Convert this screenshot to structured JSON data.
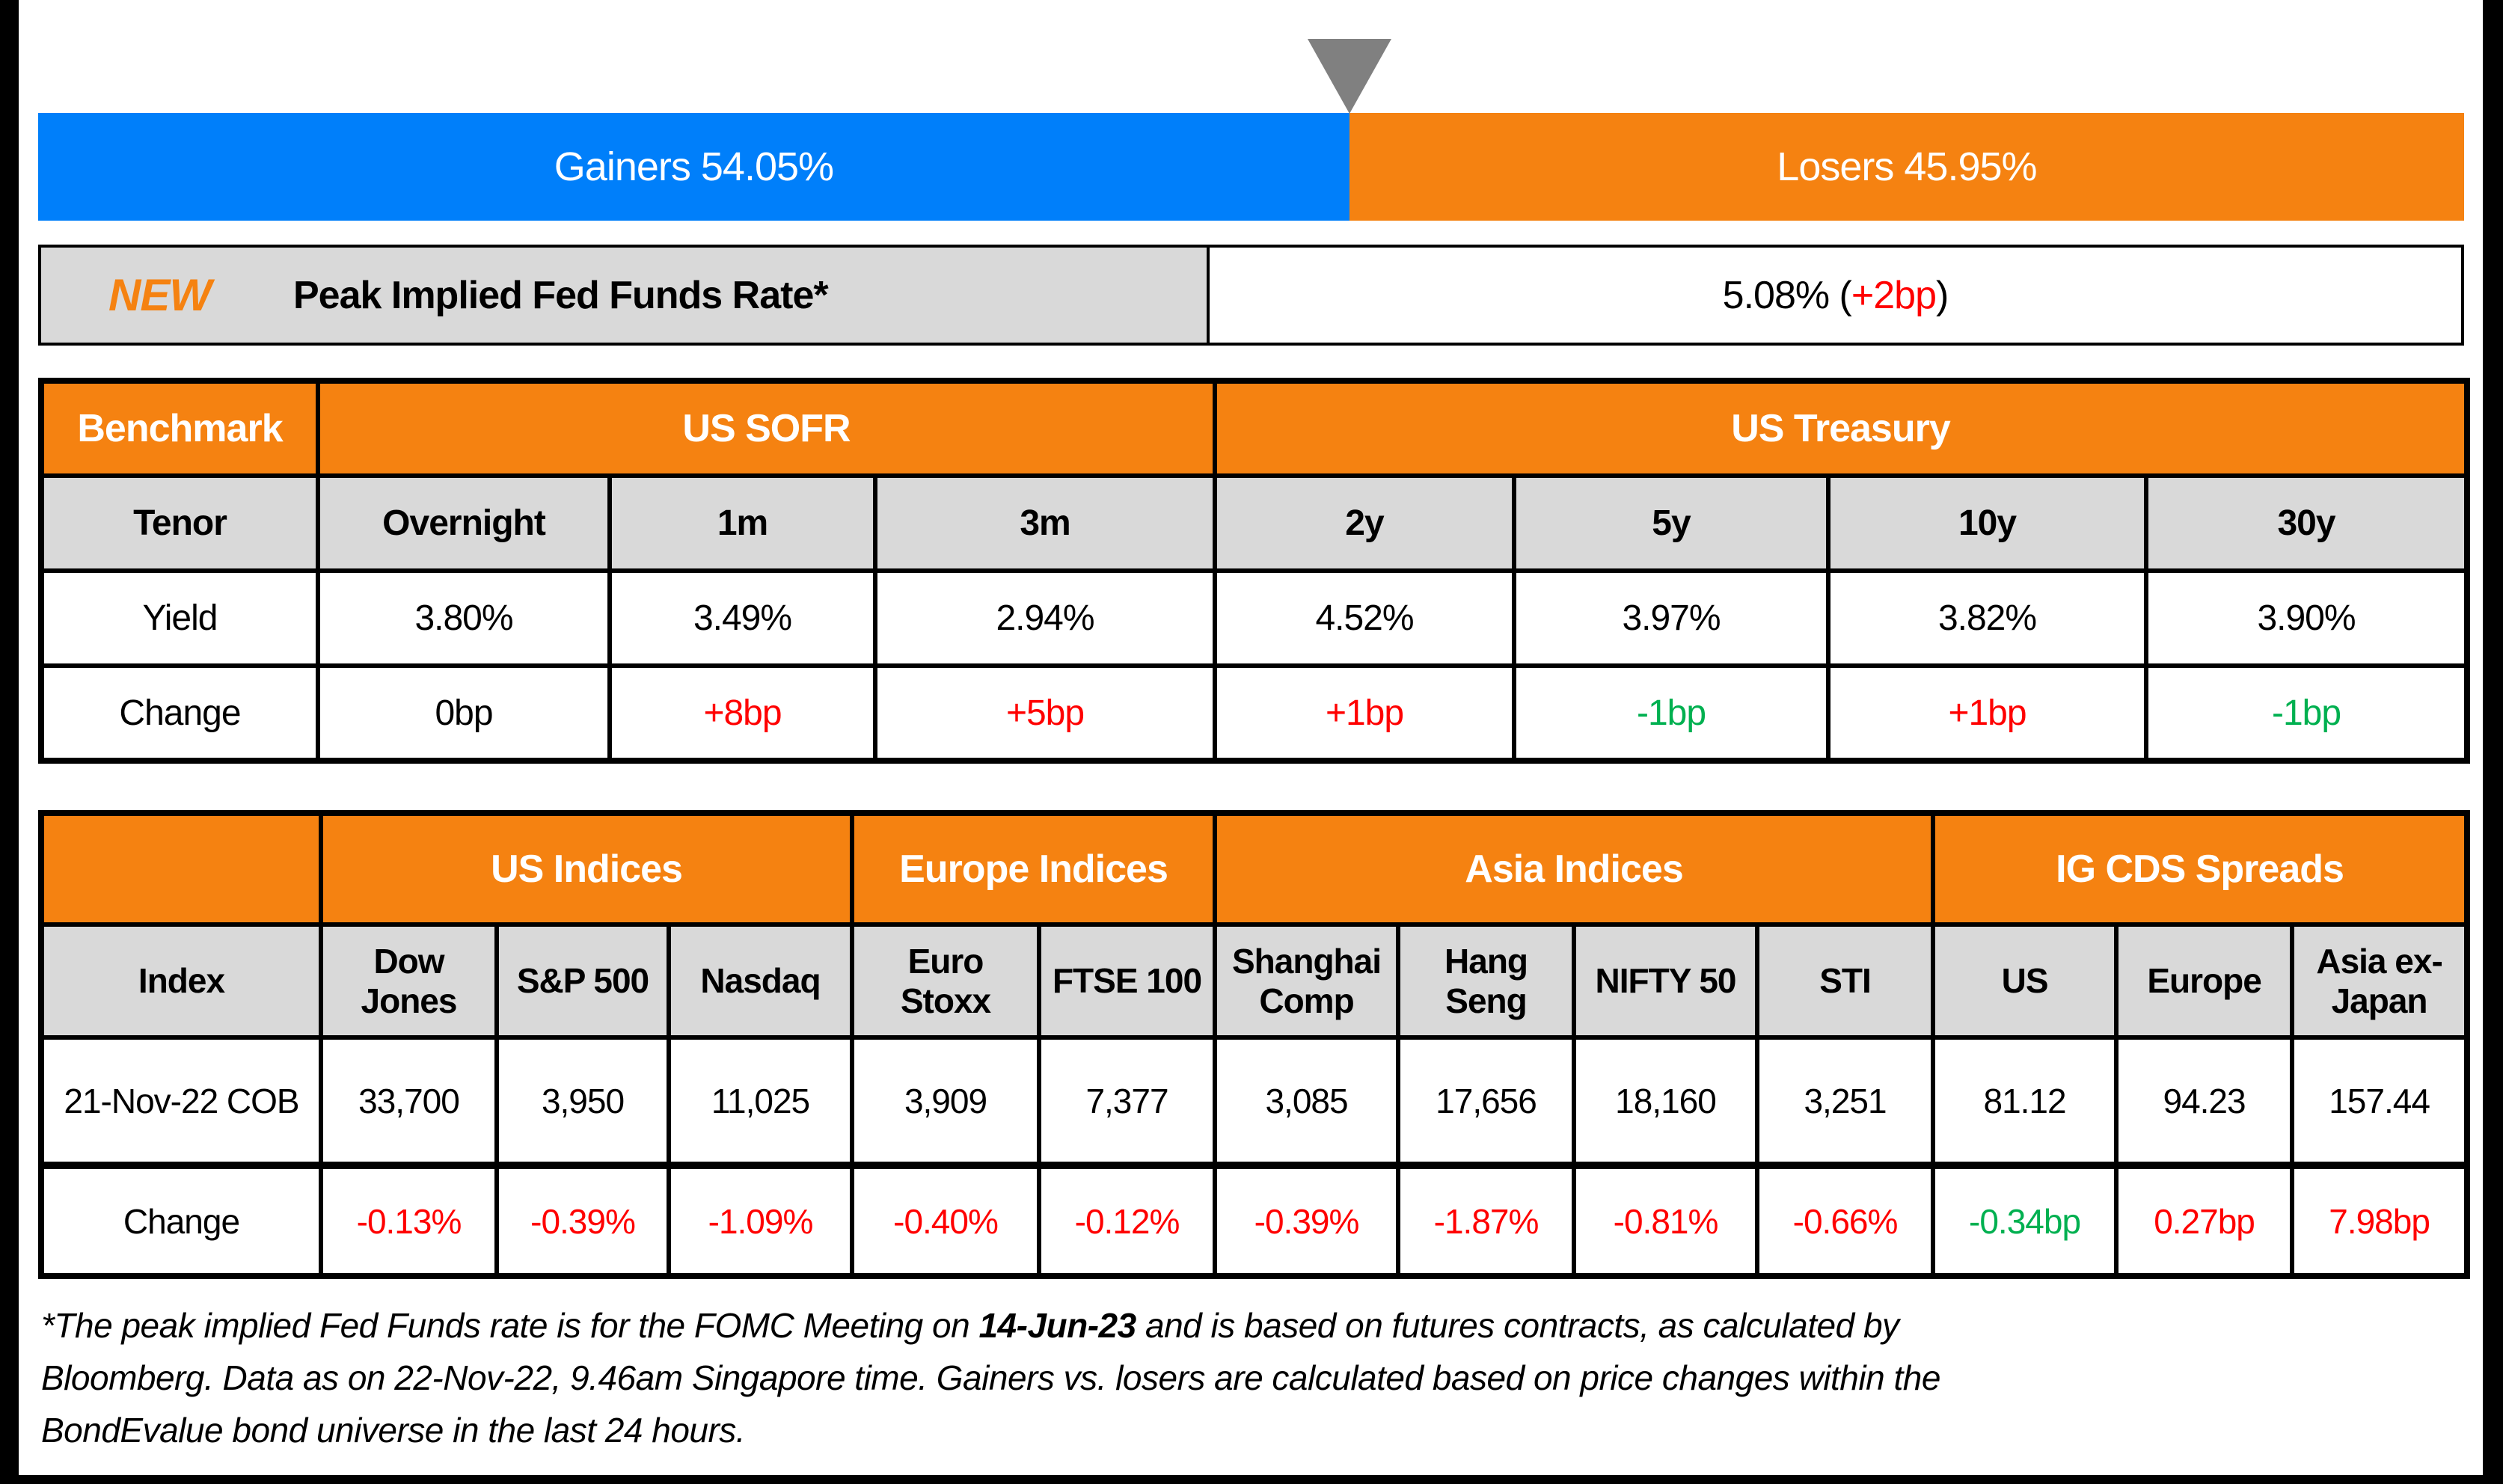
{
  "colors": {
    "gainers_blue": "#007FFA",
    "losers_orange": "#F58211",
    "header_orange": "#F58211",
    "cell_gray": "#D9D9D9",
    "marker_gray": "#808080",
    "up_red": "#FF0000",
    "down_green": "#00B050",
    "black": "#000000"
  },
  "bar": {
    "gainers_label": "Gainers 54.05%",
    "gainers_pct": 54.05,
    "losers_label": "Losers 45.95%",
    "losers_pct": 45.95
  },
  "fed": {
    "badge": "NEW",
    "title": "Peak Implied Fed Funds Rate*",
    "value_prefix": "5.08% (",
    "change": "+2bp",
    "value_suffix": ")"
  },
  "benchmark": {
    "corner": "Benchmark",
    "group_sofr": "US SOFR",
    "group_treasury": "US Treasury",
    "tenor_label": "Tenor",
    "yield_label": "Yield",
    "change_label": "Change",
    "tenors": [
      "Overnight",
      "1m",
      "3m",
      "2y",
      "5y",
      "10y",
      "30y"
    ],
    "yields": [
      "3.80%",
      "3.49%",
      "2.94%",
      "4.52%",
      "3.97%",
      "3.82%",
      "3.90%"
    ],
    "changes": [
      "0bp",
      "+8bp",
      "+5bp",
      "+1bp",
      "-1bp",
      "+1bp",
      "-1bp"
    ],
    "change_colors": [
      "#000000",
      "#FF0000",
      "#FF0000",
      "#FF0000",
      "#00B050",
      "#FF0000",
      "#00B050"
    ]
  },
  "indices": {
    "group_us": "US Indices",
    "group_europe": "Europe Indices",
    "group_asia": "Asia Indices",
    "group_cds": "IG CDS Spreads",
    "index_label": "Index",
    "date_label": "21-Nov-22 COB",
    "change_label": "Change",
    "names": [
      "Dow Jones",
      "S&P 500",
      "Nasdaq",
      "Euro Stoxx",
      "FTSE 100",
      "Shanghai Comp",
      "Hang Seng",
      "NIFTY 50",
      "STI",
      "US",
      "Europe",
      "Asia ex-Japan"
    ],
    "values": [
      "33,700",
      "3,950",
      "11,025",
      "3,909",
      "7,377",
      "3,085",
      "17,656",
      "18,160",
      "3,251",
      "81.12",
      "94.23",
      "157.44"
    ],
    "changes": [
      "-0.13%",
      "-0.39%",
      "-1.09%",
      "-0.40%",
      "-0.12%",
      "-0.39%",
      "-1.87%",
      "-0.81%",
      "-0.66%",
      "-0.34bp",
      "0.27bp",
      "7.98bp"
    ],
    "change_colors": [
      "#FF0000",
      "#FF0000",
      "#FF0000",
      "#FF0000",
      "#FF0000",
      "#FF0000",
      "#FF0000",
      "#FF0000",
      "#FF0000",
      "#00B050",
      "#FF0000",
      "#FF0000"
    ]
  },
  "footnote": {
    "line1_pre": "*The peak implied Fed Funds rate is for the FOMC Meeting on ",
    "line1_bold": "14-Jun-23",
    "line1_post": " and is based on futures contracts, as calculated by",
    "line2": "Bloomberg. Data as on 22-Nov-22, 9.46am Singapore time. Gainers vs. losers are calculated based on price changes within the",
    "line3": "BondEvalue bond universe in the last 24 hours."
  },
  "chart_data": [
    {
      "type": "bar",
      "orientation": "horizontal",
      "stacked": true,
      "title": "Gainers vs Losers (% of bond universe, last 24 hours)",
      "categories": [
        "BondEvalue bond universe"
      ],
      "series": [
        {
          "name": "Gainers",
          "values": [
            54.05
          ],
          "color": "#007FFA"
        },
        {
          "name": "Losers",
          "values": [
            45.95
          ],
          "color": "#F58211"
        }
      ],
      "xlim": [
        0,
        100
      ],
      "legend": "labels inside segments",
      "annotations": [
        "gray down-triangle marker at 54.05% boundary"
      ]
    },
    {
      "type": "table",
      "title": "Benchmark",
      "column_groups": {
        "US SOFR": [
          "Overnight",
          "1m",
          "3m"
        ],
        "US Treasury": [
          "2y",
          "5y",
          "10y",
          "30y"
        ]
      },
      "columns": [
        "Tenor",
        "Overnight",
        "1m",
        "3m",
        "2y",
        "5y",
        "10y",
        "30y"
      ],
      "rows": [
        {
          "label": "Yield",
          "values": [
            "3.80%",
            "3.49%",
            "2.94%",
            "4.52%",
            "3.97%",
            "3.82%",
            "3.90%"
          ]
        },
        {
          "label": "Change",
          "values": [
            "0bp",
            "+8bp",
            "+5bp",
            "+1bp",
            "-1bp",
            "+1bp",
            "-1bp"
          ]
        }
      ]
    },
    {
      "type": "table",
      "title": "Indices and IG CDS Spreads",
      "column_groups": {
        "US Indices": [
          "Dow Jones",
          "S&P 500",
          "Nasdaq"
        ],
        "Europe Indices": [
          "Euro Stoxx",
          "FTSE 100"
        ],
        "Asia Indices": [
          "Shanghai Comp",
          "Hang Seng",
          "NIFTY 50",
          "STI"
        ],
        "IG CDS Spreads": [
          "US",
          "Europe",
          "Asia ex-Japan"
        ]
      },
      "columns": [
        "Index",
        "Dow Jones",
        "S&P 500",
        "Nasdaq",
        "Euro Stoxx",
        "FTSE 100",
        "Shanghai Comp",
        "Hang Seng",
        "NIFTY 50",
        "STI",
        "US",
        "Europe",
        "Asia ex-Japan"
      ],
      "rows": [
        {
          "label": "21-Nov-22 COB",
          "values": [
            33700,
            3950,
            11025,
            3909,
            7377,
            3085,
            17656,
            18160,
            3251,
            81.12,
            94.23,
            157.44
          ]
        },
        {
          "label": "Change",
          "values": [
            "-0.13%",
            "-0.39%",
            "-1.09%",
            "-0.40%",
            "-0.12%",
            "-0.39%",
            "-1.87%",
            "-0.81%",
            "-0.66%",
            "-0.34bp",
            "0.27bp",
            "7.98bp"
          ]
        }
      ]
    }
  ]
}
